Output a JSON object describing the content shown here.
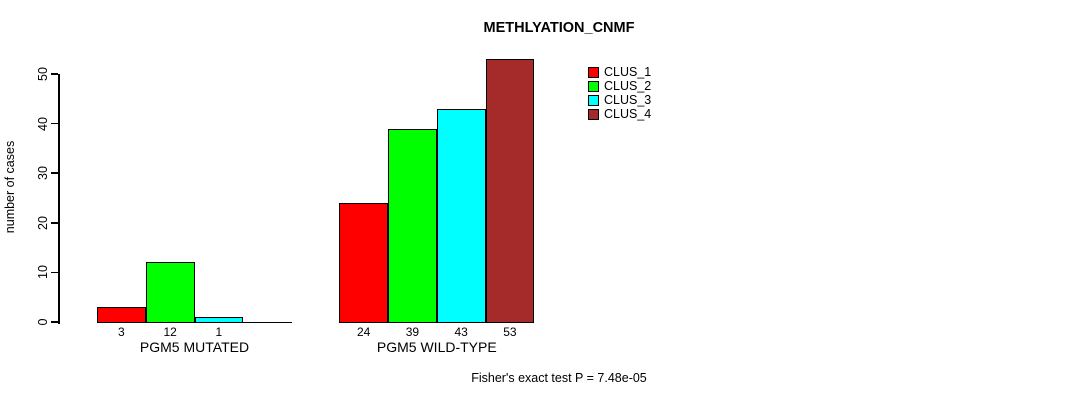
{
  "title": "METHLYATION_CNMF",
  "footer": "Fisher's exact test P = 7.48e-05",
  "chart_data": {
    "type": "bar",
    "title": "METHLYATION_CNMF",
    "xlabel": "",
    "ylabel": "number of cases",
    "ylim": [
      0,
      53
    ],
    "yticks": [
      0,
      10,
      20,
      30,
      40,
      50
    ],
    "grid": false,
    "legend_position": "top-right",
    "bar_value_labels_shown": true,
    "categories": [
      "PGM5 MUTATED",
      "PGM5 WILD-TYPE"
    ],
    "series": [
      {
        "name": "CLUS_1",
        "color": "#FF0000",
        "values": [
          3,
          24
        ]
      },
      {
        "name": "CLUS_2",
        "color": "#00FF00",
        "values": [
          12,
          39
        ]
      },
      {
        "name": "CLUS_3",
        "color": "#00FFFF",
        "values": [
          1,
          43
        ]
      },
      {
        "name": "CLUS_4",
        "color": "#A52A2A",
        "values": [
          0,
          53
        ]
      }
    ],
    "annotation": "Fisher's exact test P = 7.48e-05"
  },
  "legend": {
    "entries": [
      {
        "label": "CLUS_1",
        "color": "#FF0000"
      },
      {
        "label": "CLUS_2",
        "color": "#00FF00"
      },
      {
        "label": "CLUS_3",
        "color": "#00FFFF"
      },
      {
        "label": "CLUS_4",
        "color": "#A52A2A"
      }
    ]
  },
  "colors": {
    "axis": "#000000",
    "text": "#000000",
    "background": "#FFFFFF"
  }
}
